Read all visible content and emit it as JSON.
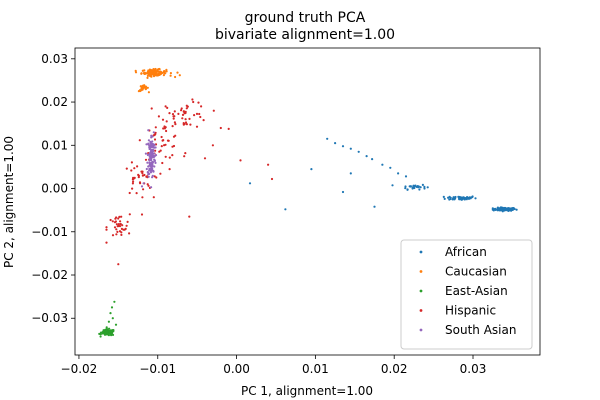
{
  "chart_data": {
    "type": "scatter",
    "title": [
      "ground truth PCA",
      "bivariate alignment=1.00"
    ],
    "xlabel": "PC 1, alignment=1.00",
    "ylabel": "PC 2, alignment=1.00",
    "xlim": [
      -0.0205,
      0.0385
    ],
    "ylim": [
      -0.0385,
      0.0325
    ],
    "xticks": [
      -0.02,
      -0.01,
      0.0,
      0.01,
      0.02,
      0.03
    ],
    "xtick_labels": [
      "−0.02",
      "−0.01",
      "0.00",
      "0.01",
      "0.02",
      "0.03"
    ],
    "yticks": [
      -0.03,
      -0.02,
      -0.01,
      0.0,
      0.01,
      0.02,
      0.03
    ],
    "ytick_labels": [
      "−0.03",
      "−0.02",
      "−0.01",
      "0.00",
      "0.01",
      "0.02",
      "0.03"
    ],
    "grid": false,
    "legend_position": "lower-right",
    "series": [
      {
        "name": "African",
        "color": "#1f77b4",
        "clusters": [
          {
            "center": [
              0.034,
              -0.0048
            ],
            "spread": [
              0.0012,
              0.0003
            ],
            "count": 110
          },
          {
            "center": [
              0.0285,
              -0.0022
            ],
            "spread": [
              0.0016,
              0.0004
            ],
            "count": 55
          },
          {
            "center": [
              0.0225,
              0.0004
            ],
            "spread": [
              0.0013,
              0.0005
            ],
            "count": 28
          }
        ],
        "points": [
          [
            0.0115,
            0.0115
          ],
          [
            0.0125,
            0.0105
          ],
          [
            0.0135,
            0.0098
          ],
          [
            0.0145,
            0.0092
          ],
          [
            0.0155,
            0.0085
          ],
          [
            0.0165,
            0.0075
          ],
          [
            0.0172,
            0.0068
          ],
          [
            0.0185,
            0.0055
          ],
          [
            0.0195,
            0.0048
          ],
          [
            0.0205,
            0.0035
          ],
          [
            0.0215,
            0.0028
          ],
          [
            0.0095,
            0.0045
          ],
          [
            0.0135,
            -0.0008
          ],
          [
            0.0175,
            -0.0042
          ],
          [
            0.0062,
            -0.0048
          ],
          [
            0.0017,
            0.0012
          ],
          [
            0.0145,
            0.0035
          ]
        ]
      },
      {
        "name": "Caucasian",
        "color": "#ff7f0e",
        "clusters": [
          {
            "center": [
              -0.0105,
              0.0268
            ],
            "spread": [
              0.0013,
              0.0006
            ],
            "count": 120
          },
          {
            "center": [
              -0.0118,
              0.0232
            ],
            "spread": [
              0.0005,
              0.0006
            ],
            "count": 25
          }
        ],
        "points": [
          [
            -0.0078,
            0.0258
          ],
          [
            -0.0075,
            0.0268
          ],
          [
            -0.0072,
            0.0262
          ],
          [
            -0.0128,
            0.0272
          ]
        ]
      },
      {
        "name": "East-Asian",
        "color": "#2ca02c",
        "clusters": [
          {
            "center": [
              -0.0163,
              -0.0333
            ],
            "spread": [
              0.0007,
              0.0006
            ],
            "count": 110
          }
        ],
        "points": [
          [
            -0.0155,
            -0.0262
          ],
          [
            -0.0158,
            -0.0275
          ],
          [
            -0.016,
            -0.0288
          ],
          [
            -0.0157,
            -0.03
          ],
          [
            -0.0162,
            -0.0308
          ],
          [
            -0.0153,
            -0.0315
          ]
        ]
      },
      {
        "name": "Hispanic",
        "color": "#d62728",
        "clusters": [
          {
            "center": [
              -0.0065,
              0.017
            ],
            "spread": [
              0.0025,
              0.0025
            ],
            "count": 45
          },
          {
            "center": [
              -0.0095,
              0.011
            ],
            "spread": [
              0.002,
              0.0035
            ],
            "count": 40
          },
          {
            "center": [
              -0.0125,
              0.002
            ],
            "spread": [
              0.0015,
              0.003
            ],
            "count": 35
          },
          {
            "center": [
              -0.015,
              -0.009
            ],
            "spread": [
              0.0012,
              0.0025
            ],
            "count": 35
          }
        ],
        "points": [
          [
            -0.0065,
            0.0082
          ],
          [
            -0.004,
            0.007
          ],
          [
            -0.002,
            0.014
          ],
          [
            -0.001,
            0.0138
          ],
          [
            0.0005,
            0.0065
          ],
          [
            0.004,
            0.0055
          ],
          [
            0.0045,
            0.0022
          ],
          [
            -0.006,
            -0.0065
          ],
          [
            -0.015,
            -0.0175
          ],
          [
            -0.0165,
            -0.0125
          ],
          [
            -0.012,
            -0.006
          ],
          [
            -0.003,
            0.01
          ],
          [
            -0.0085,
            0.0045
          ],
          [
            -0.0105,
            -0.002
          ],
          [
            -0.009,
            0.019
          ],
          [
            -0.0055,
            0.02
          ]
        ]
      },
      {
        "name": "South Asian",
        "color": "#9467bd",
        "clusters": [
          {
            "center": [
              -0.0108,
              0.0075
            ],
            "spread": [
              0.0004,
              0.0042
            ],
            "count": 140
          }
        ],
        "points": [
          [
            -0.0112,
            0.0135
          ],
          [
            -0.0105,
            0.013
          ],
          [
            -0.0118,
            0.0012
          ],
          [
            -0.012,
            0.0005
          ]
        ]
      }
    ]
  }
}
